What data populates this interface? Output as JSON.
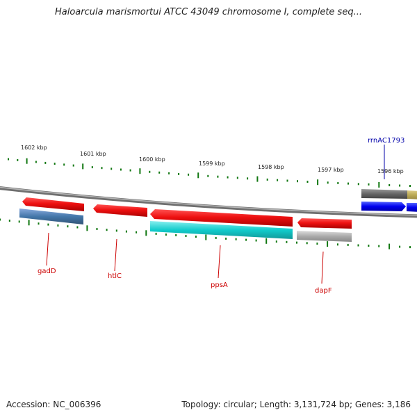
{
  "title": "Haloarcula marismortui ATCC 43049 chromosome I, complete seq...",
  "footer": {
    "accession": "Accession: NC_006396",
    "summary": "Topology: circular; Length: 3,131,724 bp; Genes: 3,186"
  },
  "colors": {
    "tick": "#117711",
    "backbone": "#7f7f7f",
    "red_gene": "#ee1111",
    "blue_gene": "#4477aa",
    "cyan_gene": "#11cccc",
    "gray_gene": "#aaaaaa",
    "dark_gray": "#666666",
    "bright_blue": "#0000ee",
    "olive": "#bbaa55",
    "label_red": "#cc0000",
    "label_blue": "#0000aa"
  },
  "scale_labels": [
    "1602 kbp",
    "1601 kbp",
    "1600 kbp",
    "1599 kbp",
    "1598 kbp",
    "1597 kbp",
    "1596 kbp"
  ],
  "gene_labels": [
    {
      "name": "gadD",
      "color": "label_red"
    },
    {
      "name": "htlC",
      "color": "label_red"
    },
    {
      "name": "ppsA",
      "color": "label_red"
    },
    {
      "name": "dapF",
      "color": "label_red"
    },
    {
      "name": "rrnAC1793",
      "color": "label_blue"
    }
  ]
}
